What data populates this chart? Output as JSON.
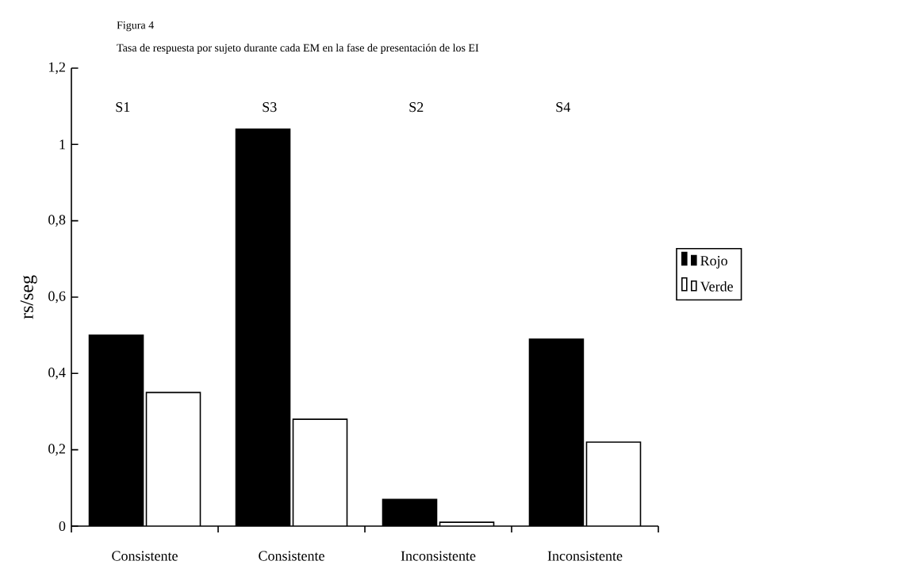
{
  "chart_data": {
    "type": "bar",
    "title": "Figura 4",
    "subtitle": "Tasa de respuesta por sujeto durante cada EM en la fase de presentación de los EI",
    "ylabel": "rs/seg",
    "categories": [
      "Consistente",
      "Consistente",
      "Inconsistente",
      "Inconsistente"
    ],
    "annotations": [
      "S1",
      "S3",
      "S2",
      "S4"
    ],
    "series": [
      {
        "name": "Rojo",
        "color": "#000000",
        "values": [
          0.5,
          1.04,
          0.07,
          0.49
        ]
      },
      {
        "name": "Verde",
        "color": "#ffffff",
        "values": [
          0.35,
          0.28,
          0.01,
          0.22
        ]
      }
    ],
    "ylim": [
      0,
      1.2
    ],
    "yticks": [
      0,
      {
        "value": 0.2,
        "label": "0,2"
      },
      {
        "value": 0.4,
        "label": "0,4"
      },
      {
        "value": 0.6,
        "label": "0,6"
      },
      {
        "value": 0.8,
        "label": "0,8"
      },
      1,
      {
        "value": 1.2,
        "label": "1,2"
      }
    ],
    "grid": false,
    "legend": "right"
  }
}
